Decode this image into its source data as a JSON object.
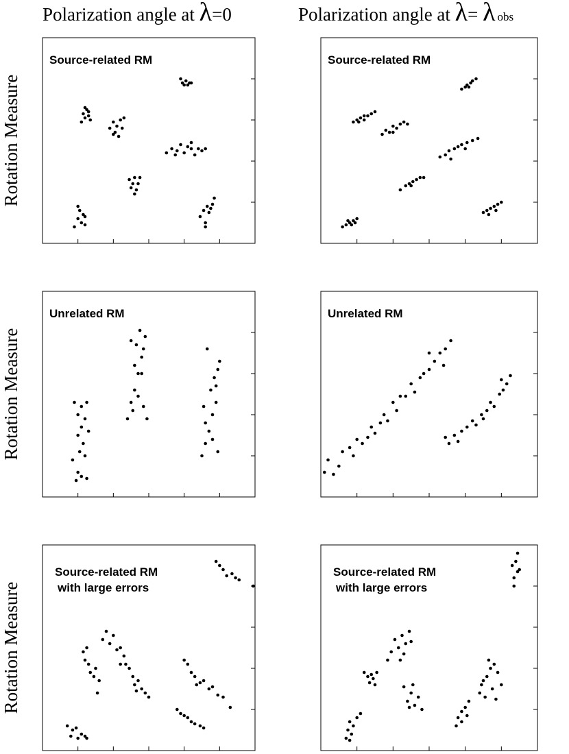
{
  "chart_data": [
    {
      "type": "scatter",
      "title": [
        "Polarization angle at ",
        "λ",
        "=0"
      ],
      "ylabel": "Rotation Measure",
      "annotation": [
        "Source-related RM"
      ],
      "color": "#000000",
      "xlim": [
        0,
        6
      ],
      "ylim": [
        0,
        5
      ],
      "xticks": [
        1,
        2,
        3,
        4,
        5
      ],
      "yticks": [
        1,
        2,
        3,
        4
      ],
      "x": [
        0.9,
        1.0,
        1.05,
        1.1,
        1.15,
        1.2,
        1.0,
        1.2,
        1.1,
        1.15,
        1.2,
        1.25,
        1.3,
        1.35,
        1.2,
        1.3,
        1.9,
        2.0,
        2.05,
        2.1,
        2.2,
        2.15,
        2.25,
        2.0,
        2.3,
        2.45,
        2.5,
        2.6,
        2.65,
        2.7,
        2.6,
        2.75,
        2.55,
        3.9,
        3.95,
        4.05,
        4.1,
        4.15,
        4.0,
        4.2,
        3.5,
        3.65,
        3.8,
        3.9,
        4.0,
        4.1,
        4.2,
        4.3,
        4.4,
        4.5,
        4.6,
        3.75,
        4.2,
        4.45,
        4.55,
        4.6,
        4.65,
        4.75,
        4.8,
        4.85,
        4.6,
        4.7
      ],
      "values": [
        0.4,
        0.6,
        0.8,
        0.5,
        0.7,
        0.45,
        0.9,
        0.65,
        2.95,
        3.15,
        3.05,
        3.25,
        3.1,
        3.0,
        3.3,
        3.2,
        2.8,
        2.95,
        2.7,
        2.85,
        3.0,
        2.6,
        2.8,
        2.65,
        3.05,
        1.55,
        1.35,
        1.6,
        1.3,
        1.45,
        1.2,
        1.6,
        1.45,
        4.0,
        3.9,
        3.95,
        3.85,
        3.9,
        3.85,
        3.9,
        2.2,
        2.3,
        2.25,
        2.4,
        2.2,
        2.35,
        2.3,
        2.15,
        2.3,
        2.25,
        2.3,
        2.15,
        2.45,
        0.65,
        0.8,
        0.5,
        0.9,
        0.85,
        0.95,
        1.1,
        0.4,
        0.75
      ]
    },
    {
      "type": "scatter",
      "title": [
        "Polarization angle at ",
        "λ",
        "= ",
        "λ",
        "obs"
      ],
      "annotation": [
        "Source-related RM"
      ],
      "color": "#000000",
      "xlim": [
        0,
        6
      ],
      "ylim": [
        0,
        5
      ],
      "xticks": [
        1,
        2,
        3,
        4,
        5
      ],
      "yticks": [
        1,
        2,
        3,
        4
      ],
      "x": [
        0.6,
        0.7,
        0.8,
        0.85,
        0.9,
        1.0,
        0.75,
        0.95,
        0.9,
        1.0,
        1.1,
        1.2,
        1.3,
        1.4,
        1.5,
        1.2,
        1.05,
        1.7,
        1.8,
        1.9,
        2.0,
        2.1,
        2.2,
        2.3,
        2.4,
        2.0,
        2.2,
        2.35,
        2.45,
        2.55,
        2.65,
        2.75,
        2.85,
        2.5,
        3.9,
        4.0,
        4.05,
        4.15,
        4.2,
        4.3,
        4.1,
        3.3,
        3.45,
        3.55,
        3.7,
        3.8,
        3.9,
        4.05,
        4.2,
        4.35,
        3.6,
        4.0,
        4.5,
        4.6,
        4.7,
        4.8,
        4.9,
        5.0,
        4.65,
        4.85
      ],
      "values": [
        0.4,
        0.45,
        0.5,
        0.45,
        0.55,
        0.6,
        0.55,
        0.5,
        2.95,
        3.0,
        3.05,
        3.0,
        3.1,
        3.15,
        3.2,
        3.1,
        2.95,
        2.65,
        2.75,
        2.7,
        2.85,
        2.8,
        2.9,
        2.95,
        2.9,
        2.7,
        1.3,
        1.4,
        1.45,
        1.5,
        1.55,
        1.6,
        1.6,
        1.4,
        3.75,
        3.8,
        3.85,
        3.9,
        3.95,
        4.0,
        3.8,
        2.1,
        2.15,
        2.25,
        2.3,
        2.35,
        2.4,
        2.45,
        2.5,
        2.55,
        2.05,
        2.3,
        0.75,
        0.8,
        0.85,
        0.9,
        0.95,
        1.0,
        0.7,
        0.8
      ]
    },
    {
      "type": "scatter",
      "ylabel": "Rotation Measure",
      "annotation": [
        "Unrelated RM"
      ],
      "color": "#000000",
      "xlim": [
        0,
        6
      ],
      "ylim": [
        0,
        5
      ],
      "xticks": [
        1,
        2,
        3,
        4,
        5
      ],
      "yticks": [
        1,
        2,
        3,
        4
      ],
      "x": [
        0.9,
        1.0,
        1.1,
        1.2,
        1.3,
        1.0,
        1.15,
        1.05,
        0.85,
        1.2,
        1.0,
        1.1,
        1.25,
        0.95,
        1.1,
        1.25,
        2.4,
        2.5,
        2.6,
        2.7,
        2.8,
        2.65,
        2.75,
        2.9,
        2.5,
        2.55,
        2.85,
        2.95,
        2.7,
        2.8,
        2.6,
        2.85,
        4.5,
        4.6,
        4.7,
        4.8,
        4.9,
        4.75,
        4.85,
        4.95,
        4.65,
        4.55,
        4.95,
        4.8,
        4.6,
        4.9,
        5.0
      ],
      "values": [
        2.3,
        2.0,
        2.2,
        1.9,
        1.6,
        1.5,
        1.3,
        1.1,
        0.9,
        1.0,
        0.6,
        0.5,
        0.45,
        0.4,
        1.7,
        2.3,
        1.9,
        2.3,
        2.6,
        3.0,
        3.4,
        3.7,
        4.05,
        3.9,
        3.8,
        2.1,
        2.2,
        1.9,
        2.45,
        3.0,
        3.2,
        3.6,
        1.0,
        1.3,
        1.6,
        2.0,
        2.3,
        2.6,
        2.9,
        3.1,
        3.6,
        2.2,
        1.1,
        1.4,
        1.8,
        2.7,
        3.3
      ]
    },
    {
      "type": "scatter",
      "annotation": [
        "Unrelated RM"
      ],
      "color": "#000000",
      "xlim": [
        0,
        6
      ],
      "ylim": [
        0,
        5
      ],
      "xticks": [
        1,
        2,
        3,
        4,
        5
      ],
      "yticks": [
        1,
        2,
        3,
        4
      ],
      "x": [
        0.1,
        0.2,
        0.35,
        0.5,
        0.6,
        0.8,
        0.9,
        1.0,
        1.15,
        1.3,
        1.4,
        1.5,
        1.65,
        1.75,
        1.85,
        2.0,
        2.1,
        2.2,
        2.35,
        2.5,
        2.6,
        2.75,
        2.85,
        3.0,
        3.15,
        3.3,
        3.45,
        3.6,
        3.4,
        3.0,
        3.45,
        3.55,
        3.7,
        3.8,
        3.9,
        4.05,
        4.2,
        4.3,
        4.45,
        4.6,
        4.7,
        4.8,
        4.95,
        5.05,
        5.15,
        5.25,
        5.0,
        4.5
      ],
      "values": [
        0.6,
        0.9,
        0.55,
        0.75,
        1.1,
        1.2,
        1.0,
        1.4,
        1.3,
        1.45,
        1.7,
        1.55,
        1.8,
        2.0,
        1.85,
        2.3,
        2.1,
        2.45,
        2.45,
        2.75,
        2.55,
        2.9,
        3.0,
        3.1,
        3.3,
        3.5,
        3.6,
        3.8,
        3.2,
        3.5,
        1.45,
        1.3,
        1.5,
        1.35,
        1.6,
        1.7,
        1.85,
        1.75,
        2.0,
        2.1,
        2.3,
        2.2,
        2.5,
        2.6,
        2.75,
        2.95,
        2.85,
        1.9
      ]
    },
    {
      "type": "scatter",
      "ylabel": "Rotation Measure",
      "annotation": [
        "Source-related RM",
        "with large errors"
      ],
      "color": "#000000",
      "xlim": [
        0,
        6
      ],
      "ylim": [
        0,
        5
      ],
      "xticks": [
        1,
        2,
        3,
        4,
        5
      ],
      "yticks": [
        1,
        2,
        3,
        4
      ],
      "x": [
        0.7,
        0.8,
        0.85,
        0.95,
        1.0,
        1.1,
        1.2,
        1.25,
        1.15,
        1.2,
        1.3,
        1.35,
        1.45,
        1.5,
        1.6,
        1.25,
        1.55,
        1.7,
        1.8,
        1.9,
        2.0,
        2.1,
        2.2,
        2.3,
        2.35,
        2.45,
        2.55,
        2.6,
        2.7,
        2.8,
        2.9,
        3.0,
        2.2,
        2.65,
        3.8,
        3.9,
        4.0,
        4.1,
        4.2,
        4.3,
        4.45,
        4.55,
        4.0,
        4.1,
        4.2,
        4.3,
        4.45,
        4.55,
        4.7,
        4.8,
        4.95,
        5.1,
        5.3,
        4.35,
        4.9,
        5.0,
        5.1,
        5.2,
        5.35,
        5.45,
        5.55,
        5.95
      ],
      "values": [
        0.6,
        0.35,
        0.5,
        0.55,
        0.3,
        0.4,
        0.35,
        0.3,
        2.4,
        2.2,
        2.1,
        1.9,
        1.8,
        2.0,
        1.7,
        2.5,
        1.4,
        2.7,
        2.9,
        2.6,
        2.8,
        2.45,
        2.5,
        2.3,
        2.1,
        2.0,
        1.8,
        1.6,
        1.7,
        1.5,
        1.4,
        1.3,
        2.1,
        1.45,
        1.0,
        0.9,
        0.85,
        0.8,
        0.7,
        0.65,
        0.6,
        0.55,
        2.2,
        2.1,
        1.9,
        1.8,
        1.65,
        1.7,
        1.5,
        1.55,
        1.35,
        1.3,
        1.05,
        1.6,
        4.6,
        4.5,
        4.4,
        4.25,
        4.3,
        4.2,
        4.15,
        4.0
      ]
    },
    {
      "type": "scatter",
      "annotation": [
        "Source-related RM",
        "with large errors"
      ],
      "color": "#000000",
      "xlim": [
        0,
        6
      ],
      "ylim": [
        0,
        5
      ],
      "xticks": [
        1,
        2,
        3,
        4,
        5
      ],
      "yticks": [
        1,
        2,
        3,
        4
      ],
      "x": [
        0.7,
        0.75,
        0.8,
        0.85,
        0.9,
        1.0,
        1.1,
        0.8,
        1.2,
        1.3,
        1.35,
        1.45,
        1.5,
        1.4,
        1.55,
        1.85,
        1.95,
        2.05,
        2.15,
        2.25,
        2.35,
        2.45,
        2.5,
        2.3,
        2.2,
        2.3,
        2.4,
        2.5,
        2.6,
        2.7,
        2.8,
        2.55,
        2.45,
        3.75,
        3.8,
        3.9,
        4.0,
        4.05,
        4.1,
        3.9,
        4.4,
        4.5,
        4.6,
        4.7,
        4.8,
        4.9,
        4.55,
        4.75,
        4.85,
        5.0,
        4.65,
        4.45,
        5.3,
        5.35,
        5.4,
        5.45,
        5.5,
        5.35,
        5.45
      ],
      "values": [
        0.3,
        0.5,
        0.7,
        0.4,
        0.6,
        0.8,
        0.9,
        0.25,
        1.9,
        1.8,
        1.65,
        1.75,
        1.6,
        1.85,
        1.9,
        2.2,
        2.4,
        2.7,
        2.5,
        2.8,
        2.6,
        2.9,
        2.65,
        2.35,
        2.2,
        1.55,
        1.2,
        1.4,
        1.1,
        1.3,
        1.0,
        1.6,
        1.05,
        0.6,
        0.8,
        0.95,
        1.05,
        0.85,
        1.2,
        0.7,
        1.4,
        1.7,
        1.8,
        2.0,
        2.1,
        1.9,
        1.3,
        1.5,
        1.25,
        1.6,
        2.2,
        1.6,
        4.5,
        4.2,
        4.6,
        4.35,
        4.4,
        4.0,
        4.8
      ]
    }
  ]
}
